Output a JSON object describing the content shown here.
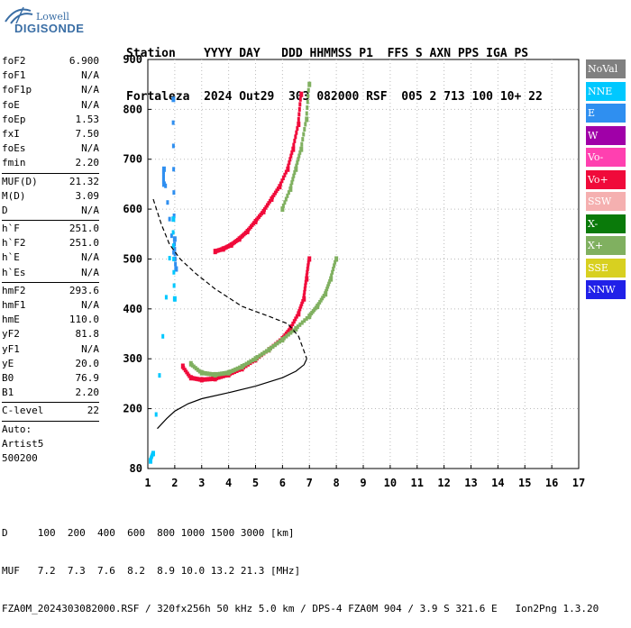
{
  "logo": {
    "line1": "Lowell",
    "line2": "DIGISONDE"
  },
  "header": {
    "labels": "Station    YYYY DAY   DDD HHMMSS P1  FFS S AXN PPS IGA PS",
    "values": "Fortaleza  2024 Out29  303 082000 RSF  005 2 713 100 10+ 22"
  },
  "params": [
    {
      "name": "foF2",
      "value": "6.900"
    },
    {
      "name": "foF1",
      "value": "N/A"
    },
    {
      "name": "foF1p",
      "value": "N/A"
    },
    {
      "name": "foE",
      "value": "N/A"
    },
    {
      "name": "foEp",
      "value": "1.53"
    },
    {
      "name": "fxI",
      "value": "7.50"
    },
    {
      "name": "foEs",
      "value": "N/A"
    },
    {
      "name": "fmin",
      "value": "2.20"
    },
    {
      "sep": true
    },
    {
      "name": "MUF(D)",
      "value": "21.32"
    },
    {
      "name": "M(D)",
      "value": "3.09"
    },
    {
      "name": "D",
      "value": "N/A"
    },
    {
      "sep": true
    },
    {
      "name": "h`F",
      "value": "251.0"
    },
    {
      "name": "h`F2",
      "value": "251.0"
    },
    {
      "name": "h`E",
      "value": "N/A"
    },
    {
      "name": "h`Es",
      "value": "N/A"
    },
    {
      "sep": true
    },
    {
      "name": "hmF2",
      "value": "293.6"
    },
    {
      "name": "hmF1",
      "value": "N/A"
    },
    {
      "name": "hmE",
      "value": "110.0"
    },
    {
      "name": "yF2",
      "value": "81.8"
    },
    {
      "name": "yF1",
      "value": "N/A"
    },
    {
      "name": "yE",
      "value": "20.0"
    },
    {
      "name": "B0",
      "value": "76.9"
    },
    {
      "name": "B1",
      "value": "2.20"
    },
    {
      "sep": true
    },
    {
      "name": "C-level",
      "value": "22"
    },
    {
      "sep": true
    },
    {
      "name": "Auto:",
      "value": ""
    },
    {
      "name": "Artist5",
      "value": ""
    },
    {
      "name": "500200",
      "value": ""
    }
  ],
  "legend": [
    {
      "label": "NoVal",
      "color": "#808080"
    },
    {
      "label": "NNE",
      "color": "#00c8ff"
    },
    {
      "label": "E",
      "color": "#2f8ff0"
    },
    {
      "label": "W",
      "color": "#a000a8"
    },
    {
      "label": "Vo-",
      "color": "#ff40b0"
    },
    {
      "label": "Vo+",
      "color": "#f00a3a"
    },
    {
      "label": "SSW",
      "color": "#f5b0b0"
    },
    {
      "label": "X-",
      "color": "#0a7a0a"
    },
    {
      "label": "X+",
      "color": "#80b060"
    },
    {
      "label": "SSE",
      "color": "#d8d020"
    },
    {
      "label": "NNW",
      "color": "#2020e8"
    }
  ],
  "footer": {
    "line1": "D     100  200  400  600  800 1000 1500 3000 [km]",
    "line2": "MUF   7.2  7.3  7.6  8.2  8.9 10.0 13.2 21.3 [MHz]",
    "line3": "FZA0M_2024303082000.RSF / 320fx256h 50 kHz 5.0 km / DPS-4 FZA0M 904 / 3.9 S 321.6 E   Ion2Png 1.3.20"
  },
  "chart_data": {
    "type": "scatter",
    "title": "",
    "xlabel": "",
    "ylabel": "",
    "xlim": [
      1,
      17
    ],
    "ylim": [
      80,
      900
    ],
    "x_ticks": [
      1,
      2,
      3,
      4,
      5,
      6,
      7,
      8,
      9,
      10,
      11,
      12,
      13,
      14,
      15,
      16,
      17
    ],
    "y_ticks": [
      80,
      200,
      300,
      400,
      500,
      600,
      700,
      800,
      900
    ],
    "grid": "dotted",
    "series": [
      {
        "name": "Vo+",
        "color": "#f00a3a",
        "x": [
          2.3,
          2.6,
          3.0,
          3.5,
          4.0,
          4.5,
          5.0,
          5.5,
          6.0,
          6.3,
          6.6,
          6.8,
          6.9,
          7.0
        ],
        "y": [
          285,
          262,
          258,
          260,
          268,
          280,
          298,
          318,
          340,
          360,
          390,
          420,
          460,
          500
        ]
      },
      {
        "name": "X+",
        "color": "#80b060",
        "x": [
          2.6,
          3.0,
          3.5,
          4.0,
          4.5,
          5.0,
          5.5,
          6.0,
          6.5,
          7.0,
          7.3,
          7.6,
          7.8,
          8.0
        ],
        "y": [
          290,
          272,
          268,
          272,
          284,
          300,
          318,
          338,
          360,
          385,
          405,
          430,
          460,
          500
        ]
      },
      {
        "name": "Vo+ (2nd hop)",
        "color": "#f00a3a",
        "x": [
          3.5,
          3.8,
          4.1,
          4.4,
          4.7,
          5.0,
          5.3,
          5.6,
          5.9,
          6.2,
          6.4,
          6.6,
          6.7
        ],
        "y": [
          515,
          520,
          528,
          540,
          555,
          575,
          595,
          620,
          645,
          680,
          720,
          770,
          830
        ]
      },
      {
        "name": "X+ (2nd hop)",
        "color": "#80b060",
        "x": [
          6.0,
          6.3,
          6.5,
          6.7,
          6.9,
          7.0
        ],
        "y": [
          600,
          640,
          680,
          720,
          780,
          850
        ]
      },
      {
        "name": "E",
        "color": "#2f8ff0",
        "x": [
          1.95,
          2.0,
          2.05,
          1.6,
          1.6
        ],
        "y": [
          820,
          540,
          480,
          680,
          650
        ]
      },
      {
        "name": "NNE",
        "color": "#00c8ff",
        "x": [
          1.1,
          1.2,
          1.95,
          2.0
        ],
        "y": [
          95,
          110,
          580,
          420
        ]
      }
    ],
    "profile_solid": {
      "x": [
        1.35,
        1.7,
        2.0,
        2.5,
        3.0,
        4.0,
        5.0,
        6.0,
        6.5,
        6.8,
        6.9
      ],
      "y": [
        160,
        180,
        195,
        210,
        220,
        232,
        245,
        262,
        275,
        288,
        300
      ]
    },
    "profile_dashed": {
      "x": [
        1.2,
        1.5,
        1.8,
        2.2,
        2.8,
        3.5,
        4.5,
        5.5,
        6.2,
        6.6,
        6.9
      ],
      "y": [
        620,
        570,
        530,
        500,
        470,
        440,
        405,
        385,
        370,
        345,
        300
      ]
    }
  }
}
